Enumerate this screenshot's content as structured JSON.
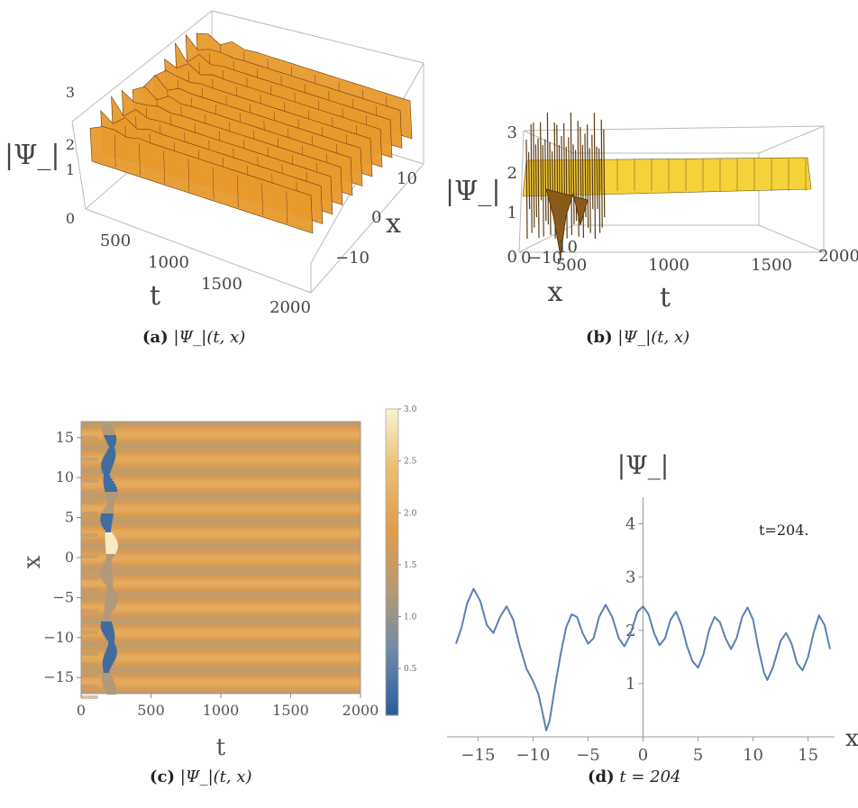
{
  "panels": [
    {
      "id": "a",
      "caption": {
        "tag": "(a)",
        "expr": "|Ψ_|(t, x)"
      }
    },
    {
      "id": "b",
      "caption": {
        "tag": "(b)",
        "expr": "|Ψ_|(t, x)"
      }
    },
    {
      "id": "c",
      "caption": {
        "tag": "(c)",
        "expr": "|Ψ_|(t, x)"
      }
    },
    {
      "id": "d",
      "caption": {
        "tag": "(d)",
        "expr": "t = 204"
      },
      "annotation": "t=204."
    }
  ],
  "chart_data": [
    {
      "type": "surface",
      "panel": "a",
      "zlabel": "|Ψ_|",
      "xlabel": "t",
      "ylabel": "x",
      "t_ticks": [
        "0",
        "500",
        "1000",
        "1500",
        "2000"
      ],
      "x_ticks": [
        "10",
        "0",
        "−10"
      ],
      "z_ticks": [
        "0",
        "1",
        "2",
        "3"
      ],
      "t_range": [
        0,
        2000
      ],
      "x_range": [
        -17,
        17
      ],
      "z_range": [
        0,
        3
      ],
      "ridges_along_x": 11,
      "surface_color": "#e89a2c"
    },
    {
      "type": "surface",
      "panel": "b",
      "zlabel": "|Ψ_|",
      "xlabel": "t",
      "ylabel": "x",
      "t_ticks": [
        "500",
        "1000",
        "1500",
        "2000"
      ],
      "x_ticks": [
        "0",
        "−10",
        "10"
      ],
      "z_ticks": [
        "0",
        "1",
        "2",
        "3"
      ],
      "t_range": [
        0,
        2000
      ],
      "z_range": [
        0,
        3
      ],
      "surface_color": "#f5d23a"
    },
    {
      "type": "heatmap",
      "panel": "c",
      "xlabel": "t",
      "ylabel": "x",
      "x_range": [
        0,
        2000
      ],
      "y_range": [
        -17,
        17
      ],
      "x_ticks": [
        0,
        500,
        1000,
        1500,
        2000
      ],
      "y_ticks": [
        -15,
        -10,
        -5,
        0,
        5,
        10,
        15
      ],
      "colorbar": {
        "range": [
          0.05,
          3.0
        ],
        "ticks": [
          "0.5",
          "1.0",
          "1.5",
          "2.0",
          "2.5",
          "3.0"
        ],
        "colors": [
          "#2a5d9c",
          "#6f88a8",
          "#b59a76",
          "#de9c4e",
          "#ebbd73",
          "#fbf3d6"
        ]
      },
      "stripe_count": 11,
      "disturbance_t": 200
    },
    {
      "type": "line",
      "panel": "d",
      "ylabel": "|Ψ_|",
      "xlabel": "x",
      "xlim": [
        -17,
        17
      ],
      "ylim": [
        0,
        4.5
      ],
      "x_ticks": [
        -15,
        -10,
        -5,
        0,
        5,
        10,
        15
      ],
      "y_ticks": [
        1,
        2,
        3,
        4
      ],
      "color": "#5b7fb5",
      "points": [
        [
          -17,
          1.75
        ],
        [
          -16.5,
          2.05
        ],
        [
          -16,
          2.5
        ],
        [
          -15.4,
          2.78
        ],
        [
          -14.8,
          2.55
        ],
        [
          -14.2,
          2.1
        ],
        [
          -13.6,
          1.95
        ],
        [
          -13,
          2.25
        ],
        [
          -12.4,
          2.45
        ],
        [
          -11.8,
          2.2
        ],
        [
          -11.2,
          1.7
        ],
        [
          -10.6,
          1.28
        ],
        [
          -10,
          1.05
        ],
        [
          -9.5,
          0.8
        ],
        [
          -9.1,
          0.42
        ],
        [
          -8.8,
          0.12
        ],
        [
          -8.5,
          0.3
        ],
        [
          -8,
          0.95
        ],
        [
          -7.5,
          1.55
        ],
        [
          -7,
          2.05
        ],
        [
          -6.5,
          2.3
        ],
        [
          -6,
          2.25
        ],
        [
          -5.5,
          1.95
        ],
        [
          -5,
          1.75
        ],
        [
          -4.5,
          1.85
        ],
        [
          -4,
          2.25
        ],
        [
          -3.4,
          2.48
        ],
        [
          -2.8,
          2.25
        ],
        [
          -2.2,
          1.85
        ],
        [
          -1.7,
          1.7
        ],
        [
          -1.2,
          1.9
        ],
        [
          -0.5,
          2.35
        ],
        [
          0,
          2.45
        ],
        [
          0.5,
          2.3
        ],
        [
          1,
          1.95
        ],
        [
          1.5,
          1.72
        ],
        [
          2,
          1.85
        ],
        [
          2.5,
          2.2
        ],
        [
          3,
          2.35
        ],
        [
          3.5,
          2.1
        ],
        [
          4,
          1.7
        ],
        [
          4.5,
          1.42
        ],
        [
          5,
          1.3
        ],
        [
          5.5,
          1.55
        ],
        [
          6,
          2.0
        ],
        [
          6.5,
          2.25
        ],
        [
          7,
          2.15
        ],
        [
          7.5,
          1.85
        ],
        [
          8,
          1.65
        ],
        [
          8.5,
          1.85
        ],
        [
          9,
          2.25
        ],
        [
          9.5,
          2.43
        ],
        [
          10,
          2.2
        ],
        [
          10.5,
          1.65
        ],
        [
          11,
          1.2
        ],
        [
          11.3,
          1.07
        ],
        [
          11.8,
          1.3
        ],
        [
          12.5,
          1.8
        ],
        [
          13,
          1.95
        ],
        [
          13.5,
          1.75
        ],
        [
          14,
          1.38
        ],
        [
          14.5,
          1.25
        ],
        [
          15,
          1.5
        ],
        [
          15.5,
          1.95
        ],
        [
          16,
          2.28
        ],
        [
          16.5,
          2.1
        ],
        [
          17,
          1.65
        ]
      ]
    }
  ]
}
